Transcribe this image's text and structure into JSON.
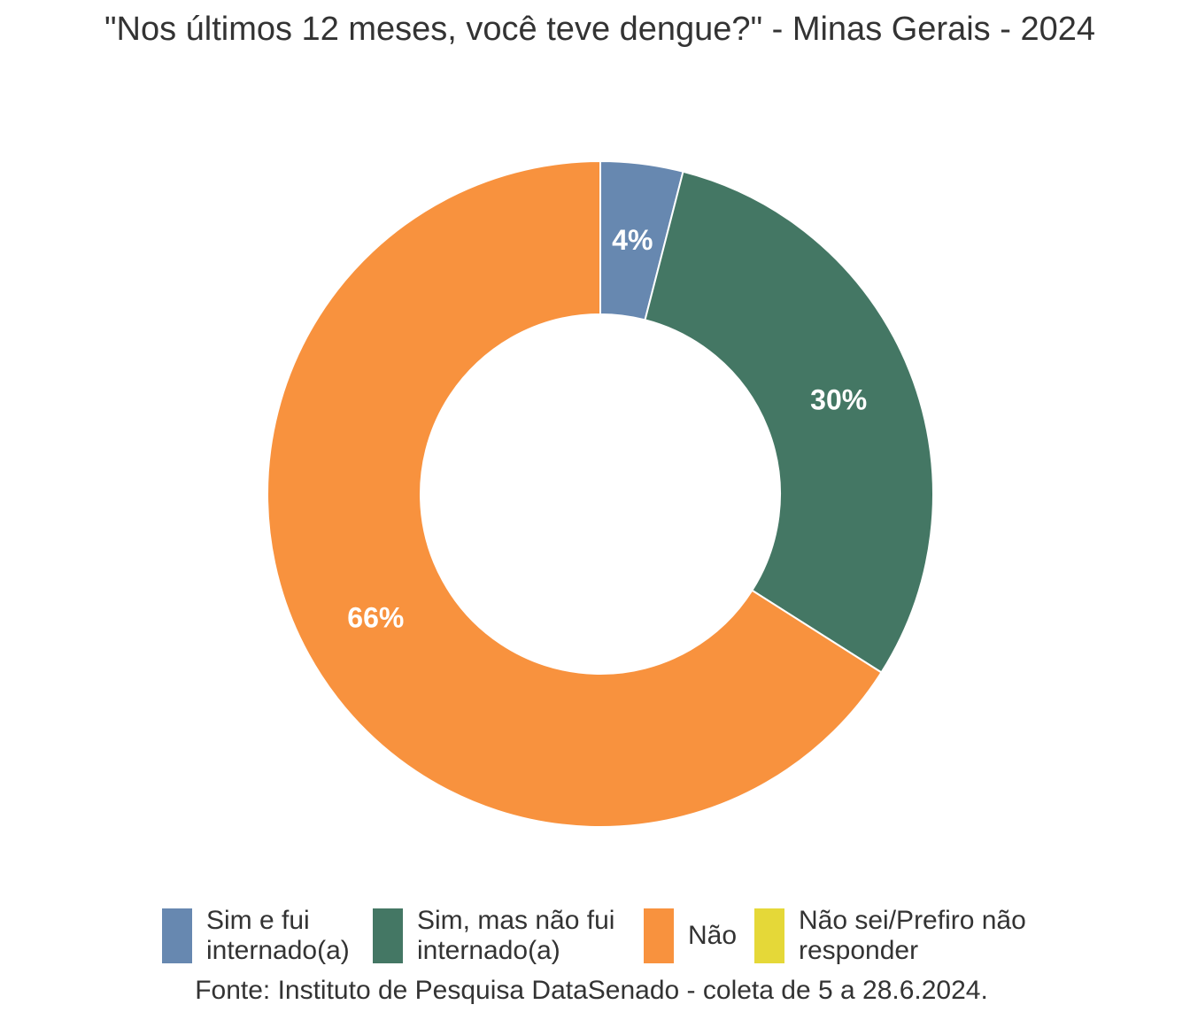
{
  "chart_data": {
    "type": "pie",
    "title": "\"Nos últimos 12 meses, você teve dengue?\" - Minas Gerais - 2024",
    "caption": "Fonte: Instituto de Pesquisa DataSenado - coleta de 5 a 28.6.2024.",
    "legend_position": "bottom",
    "donut": true,
    "categories": [
      "Sim e fui internado(a)",
      "Sim, mas não fui internado(a)",
      "Não",
      "Não sei/Prefiro não responder"
    ],
    "values": [
      4,
      30,
      66,
      0
    ],
    "labels": [
      "4%",
      "30%",
      "66%",
      ""
    ],
    "colors": [
      "#6788b0",
      "#447764",
      "#f8923e",
      "#e5d838"
    ],
    "legend_labels": [
      [
        "Sim e fui",
        "internado(a)"
      ],
      [
        "Sim, mas não fui",
        "internado(a)"
      ],
      [
        "Não"
      ],
      [
        "Não sei/Prefiro não",
        "responder"
      ]
    ]
  }
}
